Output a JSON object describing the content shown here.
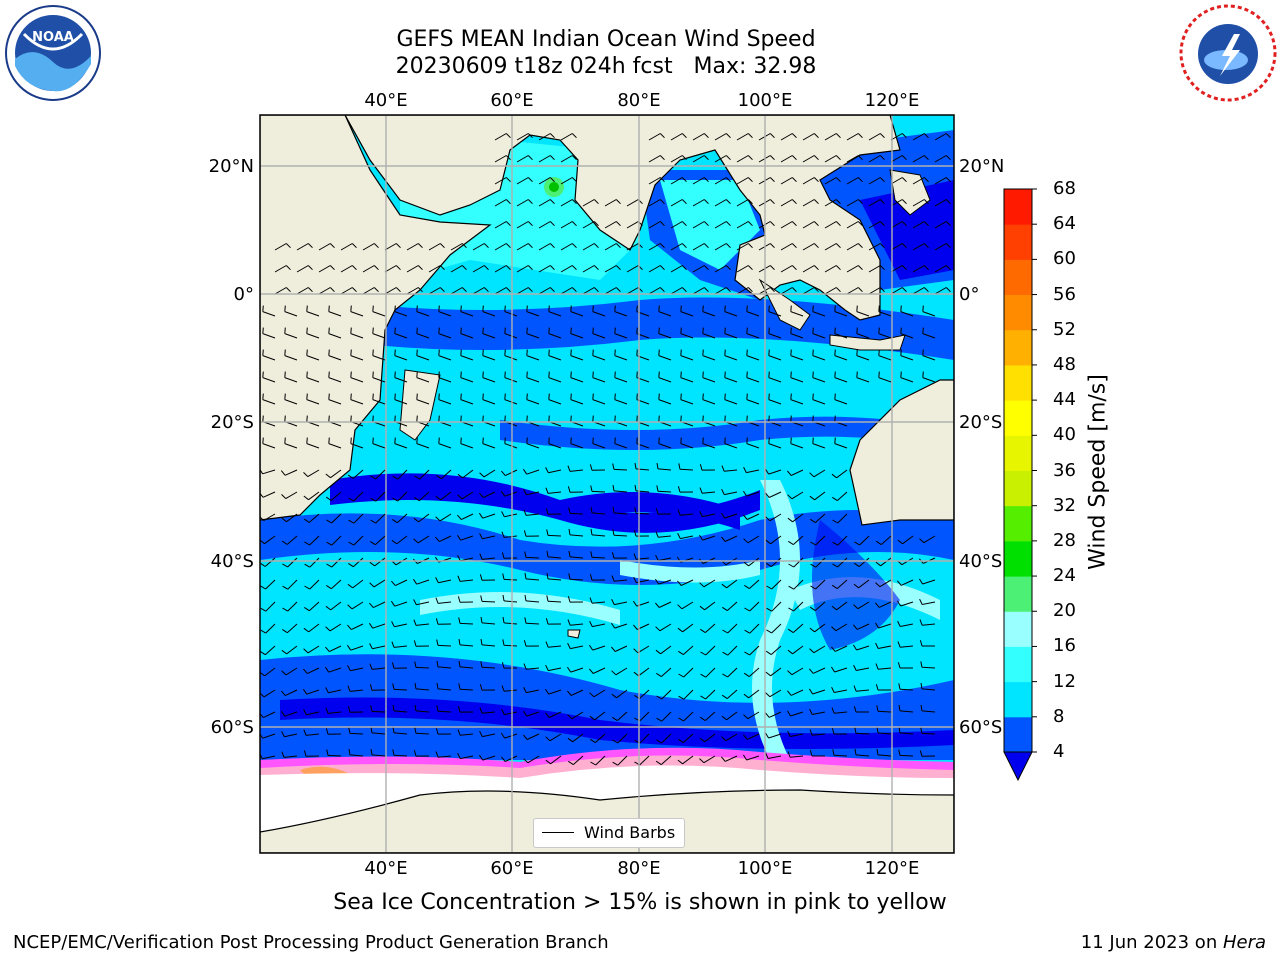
{
  "title_line1": "GEFS MEAN Indian Ocean Wind Speed",
  "title_line2": "20230609 t18z 024h fcst   Max: 32.98",
  "lon_labels": [
    "40°E",
    "60°E",
    "80°E",
    "100°E",
    "120°E"
  ],
  "lat_labels": [
    "20°N",
    "0°",
    "20°S",
    "40°S",
    "60°S"
  ],
  "legend_label": "Wind Barbs",
  "colorbar": {
    "title": "Wind Speed [m/s]",
    "ticks": [
      "4",
      "8",
      "12",
      "16",
      "20",
      "24",
      "28",
      "32",
      "36",
      "40",
      "44",
      "48",
      "52",
      "56",
      "60",
      "64",
      "68"
    ],
    "colors": [
      "#0055ff",
      "#00e5ff",
      "#33ffff",
      "#99ffff",
      "#4cf075",
      "#00e000",
      "#55ee00",
      "#c8f000",
      "#e8f500",
      "#ffff00",
      "#ffe000",
      "#ffb000",
      "#ff8c00",
      "#ff6a00",
      "#ff4000",
      "#ff1a00"
    ],
    "under_color": "#0000ee"
  },
  "caption": "Sea Ice Concentration > 15% is shown in pink to yellow",
  "footer_left": "NCEP/EMC/Verification Post Processing Product Generation Branch",
  "footer_date": "11 Jun 2023 on ",
  "footer_host": "Hera",
  "logos": {
    "left": "NOAA",
    "right": "NATIONAL WEATHER SERVICE"
  },
  "colors": {
    "land": "#efeedc",
    "ice": "#ffffff",
    "ice_edge": "#ff55ff"
  }
}
